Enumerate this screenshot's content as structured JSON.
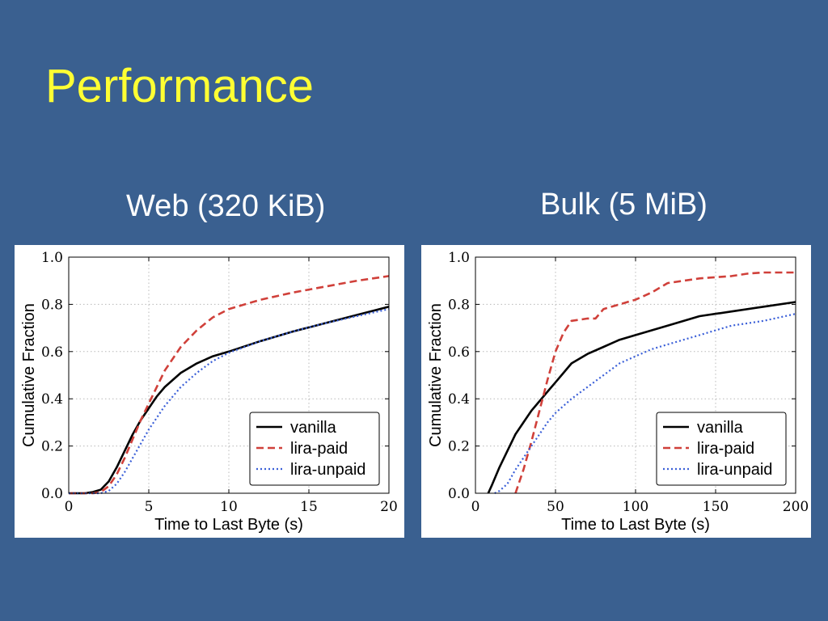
{
  "slide": {
    "title": "Performance"
  },
  "colors": {
    "background": "#3a6090",
    "title": "#ffff33",
    "vanilla": "#000000",
    "lira_paid": "#d0403a",
    "lira_unpaid": "#3a5fd8"
  },
  "chart_data": [
    {
      "type": "line",
      "title": "Web (320 KiB)",
      "xlabel": "Time to Last Byte (s)",
      "ylabel": "Cumulative Fraction",
      "xlim": [
        0,
        20
      ],
      "ylim": [
        0,
        1
      ],
      "xticks": [
        0,
        5,
        10,
        15,
        20
      ],
      "yticks": [
        0.0,
        0.2,
        0.4,
        0.6,
        0.8,
        1.0
      ],
      "xtick_labels": [
        "0",
        "5",
        "10",
        "15",
        "20"
      ],
      "ytick_labels": [
        "0.0",
        "0.2",
        "0.4",
        "0.6",
        "0.8",
        "1.0"
      ],
      "grid": true,
      "legend_position": "lower-right",
      "series": [
        {
          "name": "vanilla",
          "style": "solid",
          "color": "#000000",
          "x": [
            0,
            1,
            1.5,
            2,
            2.5,
            3,
            3.5,
            4,
            4.5,
            5,
            5.5,
            6,
            7,
            8,
            9,
            10,
            12,
            14,
            16,
            18,
            20
          ],
          "y": [
            0,
            0,
            0.005,
            0.015,
            0.05,
            0.11,
            0.18,
            0.25,
            0.31,
            0.36,
            0.41,
            0.45,
            0.51,
            0.55,
            0.58,
            0.6,
            0.645,
            0.685,
            0.72,
            0.755,
            0.79
          ]
        },
        {
          "name": "lira-paid",
          "style": "dashed",
          "color": "#d0403a",
          "x": [
            0,
            1.5,
            2,
            2.5,
            3,
            3.5,
            4,
            4.5,
            5,
            5.5,
            6,
            7,
            8,
            9,
            10,
            11,
            12,
            14,
            16,
            18,
            20
          ],
          "y": [
            0,
            0,
            0.005,
            0.03,
            0.08,
            0.15,
            0.23,
            0.31,
            0.38,
            0.45,
            0.52,
            0.62,
            0.69,
            0.745,
            0.78,
            0.8,
            0.82,
            0.85,
            0.875,
            0.9,
            0.92
          ]
        },
        {
          "name": "lira-unpaid",
          "style": "dotted",
          "color": "#3a5fd8",
          "x": [
            0,
            2,
            2.5,
            3,
            3.5,
            4,
            4.5,
            5,
            5.5,
            6,
            7,
            8,
            9,
            10,
            12,
            14,
            16,
            18,
            20
          ],
          "y": [
            0,
            0,
            0.01,
            0.04,
            0.09,
            0.15,
            0.21,
            0.27,
            0.32,
            0.37,
            0.45,
            0.51,
            0.56,
            0.595,
            0.645,
            0.685,
            0.72,
            0.75,
            0.78
          ]
        }
      ]
    },
    {
      "type": "line",
      "title": "Bulk (5 MiB)",
      "xlabel": "Time to Last Byte (s)",
      "ylabel": "Cumulative Fraction",
      "xlim": [
        0,
        200
      ],
      "ylim": [
        0,
        1
      ],
      "xticks": [
        0,
        50,
        100,
        150,
        200
      ],
      "yticks": [
        0.0,
        0.2,
        0.4,
        0.6,
        0.8,
        1.0
      ],
      "xtick_labels": [
        "0",
        "50",
        "100",
        "150",
        "200"
      ],
      "ytick_labels": [
        "0.0",
        "0.2",
        "0.4",
        "0.6",
        "0.8",
        "1.0"
      ],
      "grid": true,
      "legend_position": "lower-right",
      "series": [
        {
          "name": "vanilla",
          "style": "solid",
          "color": "#000000",
          "x": [
            8,
            10,
            15,
            20,
            25,
            30,
            35,
            40,
            45,
            50,
            55,
            60,
            70,
            80,
            90,
            100,
            120,
            140,
            160,
            180,
            200
          ],
          "y": [
            0,
            0.03,
            0.11,
            0.18,
            0.25,
            0.3,
            0.35,
            0.39,
            0.43,
            0.47,
            0.51,
            0.55,
            0.59,
            0.62,
            0.65,
            0.67,
            0.71,
            0.75,
            0.77,
            0.79,
            0.81
          ]
        },
        {
          "name": "lira-paid",
          "style": "dashed",
          "color": "#d0403a",
          "x": [
            25,
            30,
            35,
            40,
            45,
            50,
            55,
            60,
            65,
            70,
            75,
            80,
            90,
            100,
            110,
            120,
            130,
            140,
            150,
            160,
            170,
            180,
            190,
            200
          ],
          "y": [
            0,
            0.1,
            0.22,
            0.35,
            0.48,
            0.6,
            0.68,
            0.73,
            0.735,
            0.74,
            0.74,
            0.78,
            0.8,
            0.82,
            0.85,
            0.89,
            0.9,
            0.91,
            0.915,
            0.92,
            0.93,
            0.935,
            0.935,
            0.935
          ]
        },
        {
          "name": "lira-unpaid",
          "style": "dotted",
          "color": "#3a5fd8",
          "x": [
            12,
            15,
            20,
            25,
            30,
            35,
            40,
            45,
            50,
            60,
            70,
            80,
            90,
            100,
            110,
            120,
            130,
            140,
            150,
            160,
            170,
            180,
            190,
            200
          ],
          "y": [
            0,
            0.01,
            0.04,
            0.1,
            0.15,
            0.2,
            0.25,
            0.3,
            0.34,
            0.4,
            0.45,
            0.5,
            0.55,
            0.58,
            0.61,
            0.63,
            0.65,
            0.67,
            0.69,
            0.71,
            0.72,
            0.73,
            0.745,
            0.76
          ]
        }
      ]
    }
  ]
}
